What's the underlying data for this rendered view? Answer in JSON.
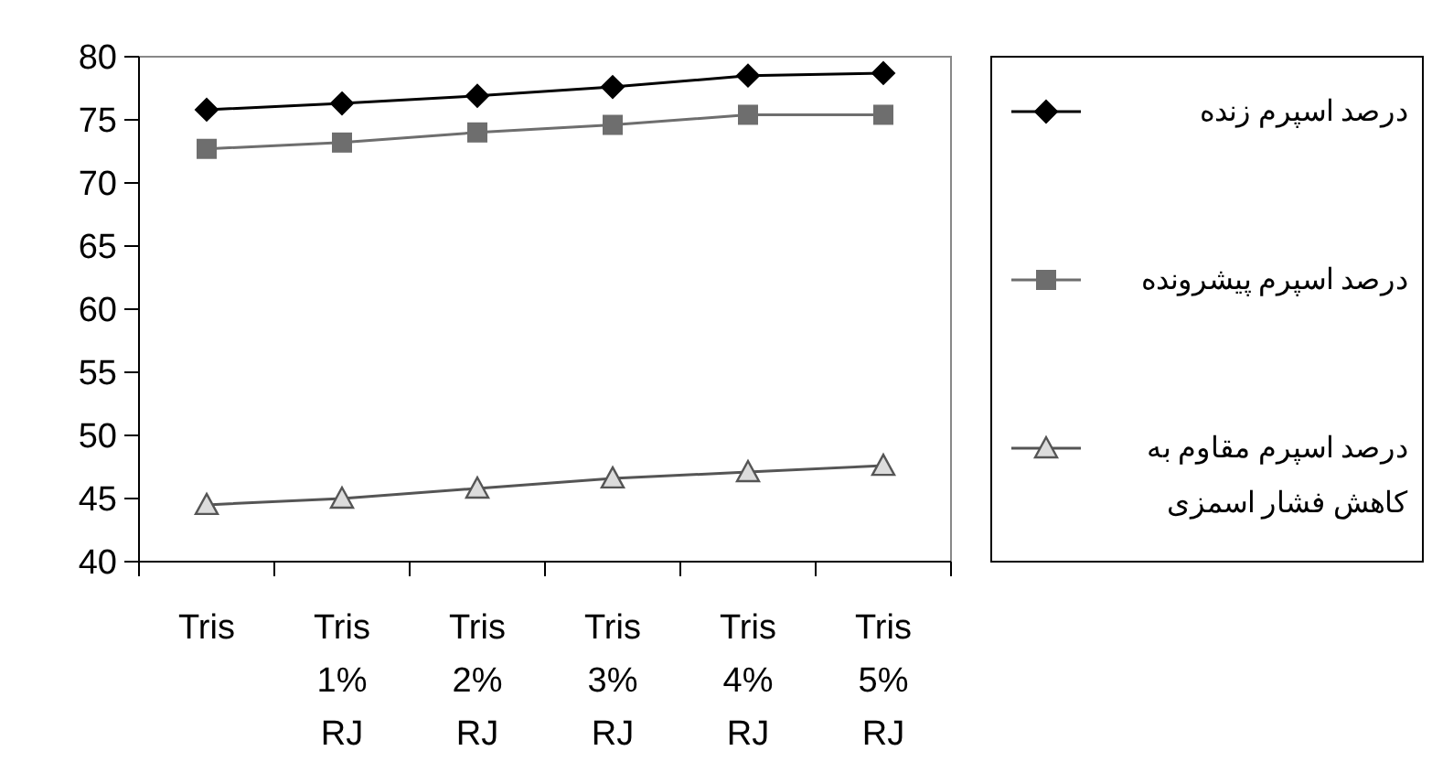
{
  "chart_data": {
    "type": "line",
    "categories": [
      "Tris",
      "Tris 1% RJ",
      "Tris 2% RJ",
      "Tris 3% RJ",
      "Tris 4% RJ",
      "Tris 5% RJ"
    ],
    "series": [
      {
        "name": "درصد اسپرم زنده",
        "color": "#000000",
        "marker": "diamond",
        "values": [
          75.8,
          76.3,
          76.9,
          77.6,
          78.5,
          78.7
        ]
      },
      {
        "name": "درصد اسپرم پیشرونده",
        "color": "#6e6e6e",
        "marker": "square",
        "values": [
          72.7,
          73.2,
          74.0,
          74.6,
          75.4,
          75.4
        ]
      },
      {
        "name": "درصد اسپرم مقاوم به کاهش فشار اسمزی",
        "color": "#555555",
        "marker": "triangle",
        "values": [
          44.5,
          45.0,
          45.8,
          46.6,
          47.1,
          47.6
        ]
      }
    ],
    "ylim": [
      40,
      80
    ],
    "yticks": [
      40,
      45,
      50,
      55,
      60,
      65,
      70,
      75,
      80
    ],
    "grid": false,
    "legend": "right"
  }
}
